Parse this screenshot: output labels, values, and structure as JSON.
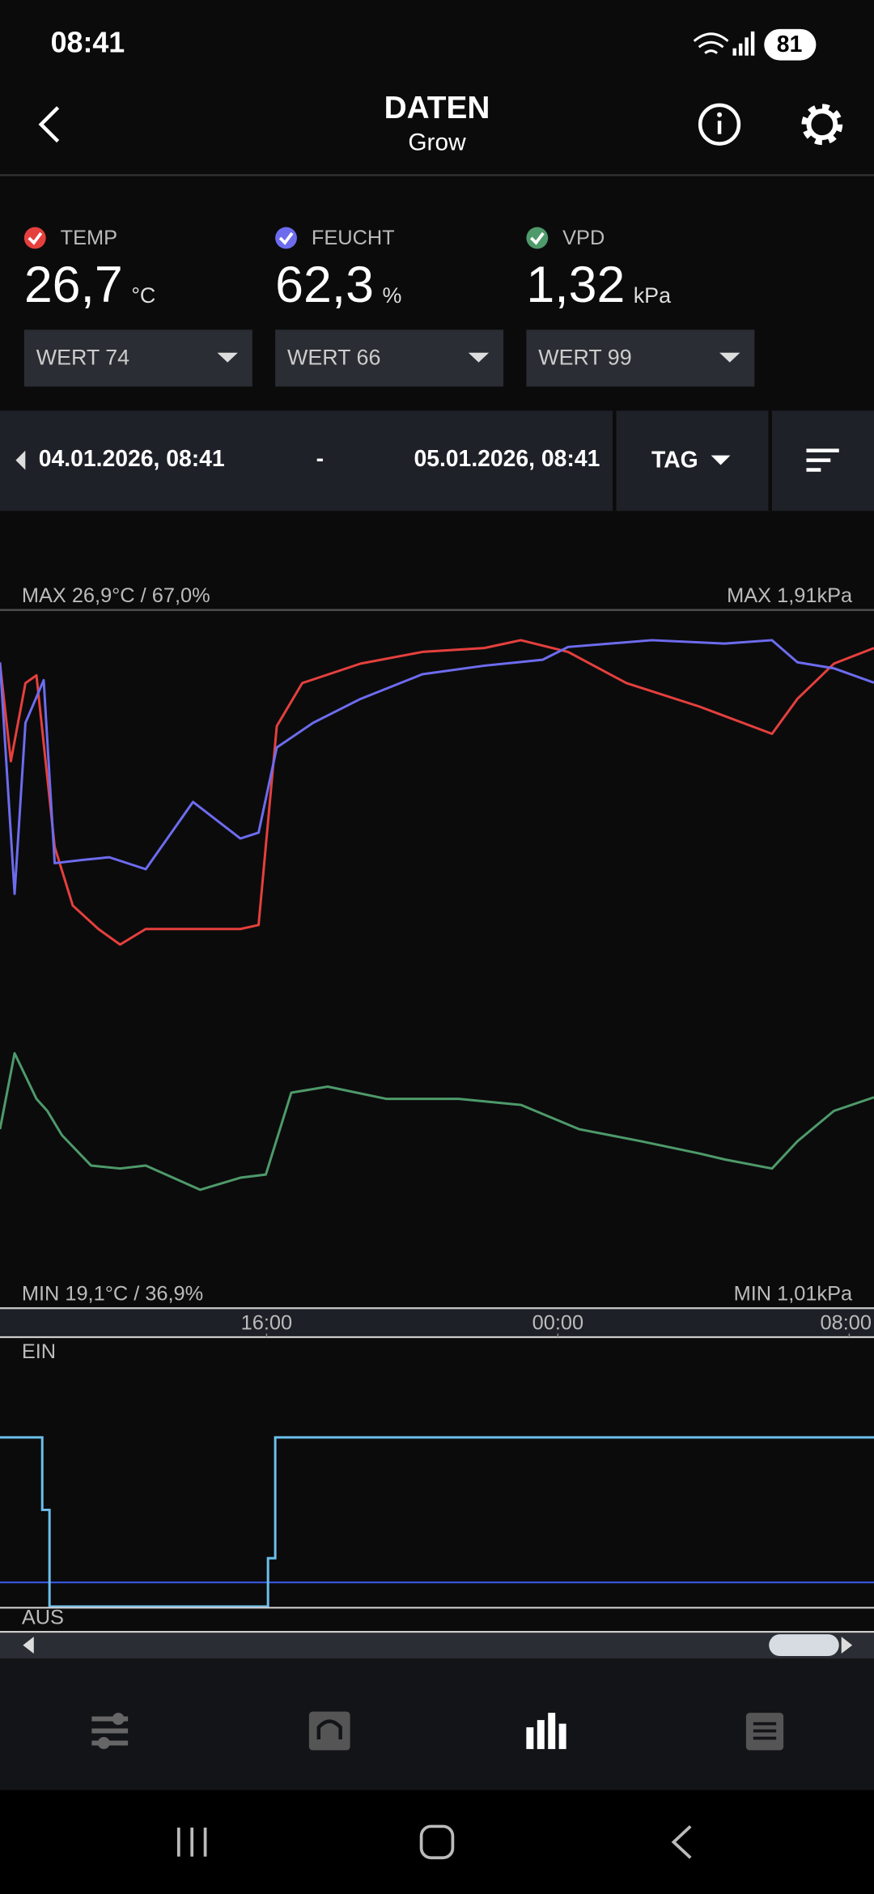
{
  "status_bar": {
    "time": "08:41",
    "battery": "81"
  },
  "header": {
    "title": "DATEN",
    "subtitle": "Grow"
  },
  "sensors": [
    {
      "label": "TEMP",
      "value": "26,7",
      "unit": "°C",
      "select": "WERT 74",
      "color": "#e5403d"
    },
    {
      "label": "FEUCHT",
      "value": "62,3",
      "unit": "%",
      "select": "WERT 66",
      "color": "#6d6cef"
    },
    {
      "label": "VPD",
      "value": "1,32",
      "unit": "kPa",
      "select": "WERT 99",
      "color": "#4e9a6a"
    }
  ],
  "range": {
    "from": "04.01.2026, 08:41",
    "separator": "-",
    "to": "05.01.2026, 08:41",
    "period": "TAG"
  },
  "chart_data": {
    "type": "line",
    "max_left": "MAX 26,9°C / 67,0%",
    "max_right": "MAX 1,91kPa",
    "min_left": "MIN 19,1°C / 36,9%",
    "min_right": "MIN 1,01kPa",
    "xlim": [
      0,
      24
    ],
    "xticks": [
      {
        "value": 7.32,
        "label": "16:00"
      },
      {
        "value": 15.32,
        "label": "00:00"
      },
      {
        "value": 23.32,
        "label": "08:00"
      }
    ],
    "series": [
      {
        "color": "#e5403d",
        "x": [
          0,
          0.3,
          0.7,
          1.0,
          1.5,
          2.0,
          2.7,
          3.3,
          4.0,
          5.3,
          6.6,
          7.1,
          7.6,
          8.3,
          9.9,
          11.6,
          13.3,
          14.3,
          15.6,
          17.2,
          19.2,
          21.2,
          21.9,
          22.9,
          24.0
        ],
        "values": [
          26.3,
          23.8,
          25.8,
          26.0,
          21.6,
          20.1,
          19.5,
          19.1,
          19.5,
          19.5,
          19.5,
          19.6,
          24.7,
          25.8,
          26.3,
          26.6,
          26.7,
          26.9,
          26.6,
          25.8,
          25.2,
          24.5,
          25.4,
          26.3,
          26.7
        ]
      },
      {
        "color": "#6d6cef",
        "x": [
          0,
          0.4,
          0.7,
          1.2,
          1.5,
          2.3,
          3.0,
          4.0,
          5.3,
          6.6,
          7.1,
          7.6,
          8.6,
          9.9,
          11.6,
          13.3,
          14.9,
          15.6,
          17.9,
          19.9,
          21.2,
          21.9,
          22.9,
          24.0
        ],
        "values": [
          64.1,
          36.9,
          57.0,
          62.0,
          40.5,
          40.9,
          41.2,
          39.8,
          47.7,
          43.4,
          44.1,
          54.1,
          57.0,
          59.8,
          62.7,
          63.7,
          64.4,
          65.9,
          66.7,
          66.3,
          66.7,
          64.1,
          63.4,
          61.7
        ]
      },
      {
        "color": "#4e9a6a",
        "x": [
          0,
          0.4,
          1.0,
          1.3,
          1.7,
          2.5,
          3.3,
          4.0,
          5.5,
          6.6,
          7.3,
          8.0,
          9.0,
          10.6,
          12.6,
          14.3,
          15.9,
          17.6,
          19.2,
          19.9,
          21.2,
          21.9,
          22.9,
          24.0
        ],
        "values": [
          1.41,
          1.91,
          1.61,
          1.53,
          1.37,
          1.17,
          1.15,
          1.17,
          1.01,
          1.09,
          1.11,
          1.65,
          1.69,
          1.61,
          1.61,
          1.57,
          1.41,
          1.33,
          1.25,
          1.21,
          1.15,
          1.33,
          1.53,
          1.62
        ]
      }
    ]
  },
  "switch_chart": {
    "on_label": "EIN",
    "off_label": "AUS"
  }
}
